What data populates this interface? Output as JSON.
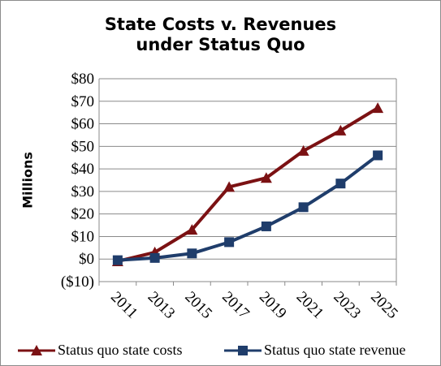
{
  "chart_data": {
    "type": "line",
    "title_line1": "State Costs v. Revenues",
    "title_line2": "under Status Quo",
    "ylabel": "Millions",
    "xlabel": "",
    "ylim": [
      -10,
      80
    ],
    "y_ticks": [
      -10,
      0,
      10,
      20,
      30,
      40,
      50,
      60,
      70,
      80
    ],
    "y_tick_labels": [
      "($10)",
      "$0",
      "$10",
      "$20",
      "$30",
      "$40",
      "$50",
      "$60",
      "$70",
      "$80"
    ],
    "categories": [
      "2011",
      "2013",
      "2015",
      "2017",
      "2019",
      "2021",
      "2023",
      "2025"
    ],
    "grid": true,
    "legend_position": "bottom",
    "series": [
      {
        "name": "Status quo state costs",
        "color": "#7b1113",
        "marker": "triangle",
        "values": [
          -1,
          3,
          13,
          32,
          36,
          48,
          57,
          67
        ]
      },
      {
        "name": "Status quo state revenue",
        "color": "#1f3d6b",
        "marker": "square",
        "values": [
          -0.5,
          0.5,
          2.5,
          7.5,
          14.5,
          23,
          33.5,
          46
        ]
      }
    ]
  }
}
